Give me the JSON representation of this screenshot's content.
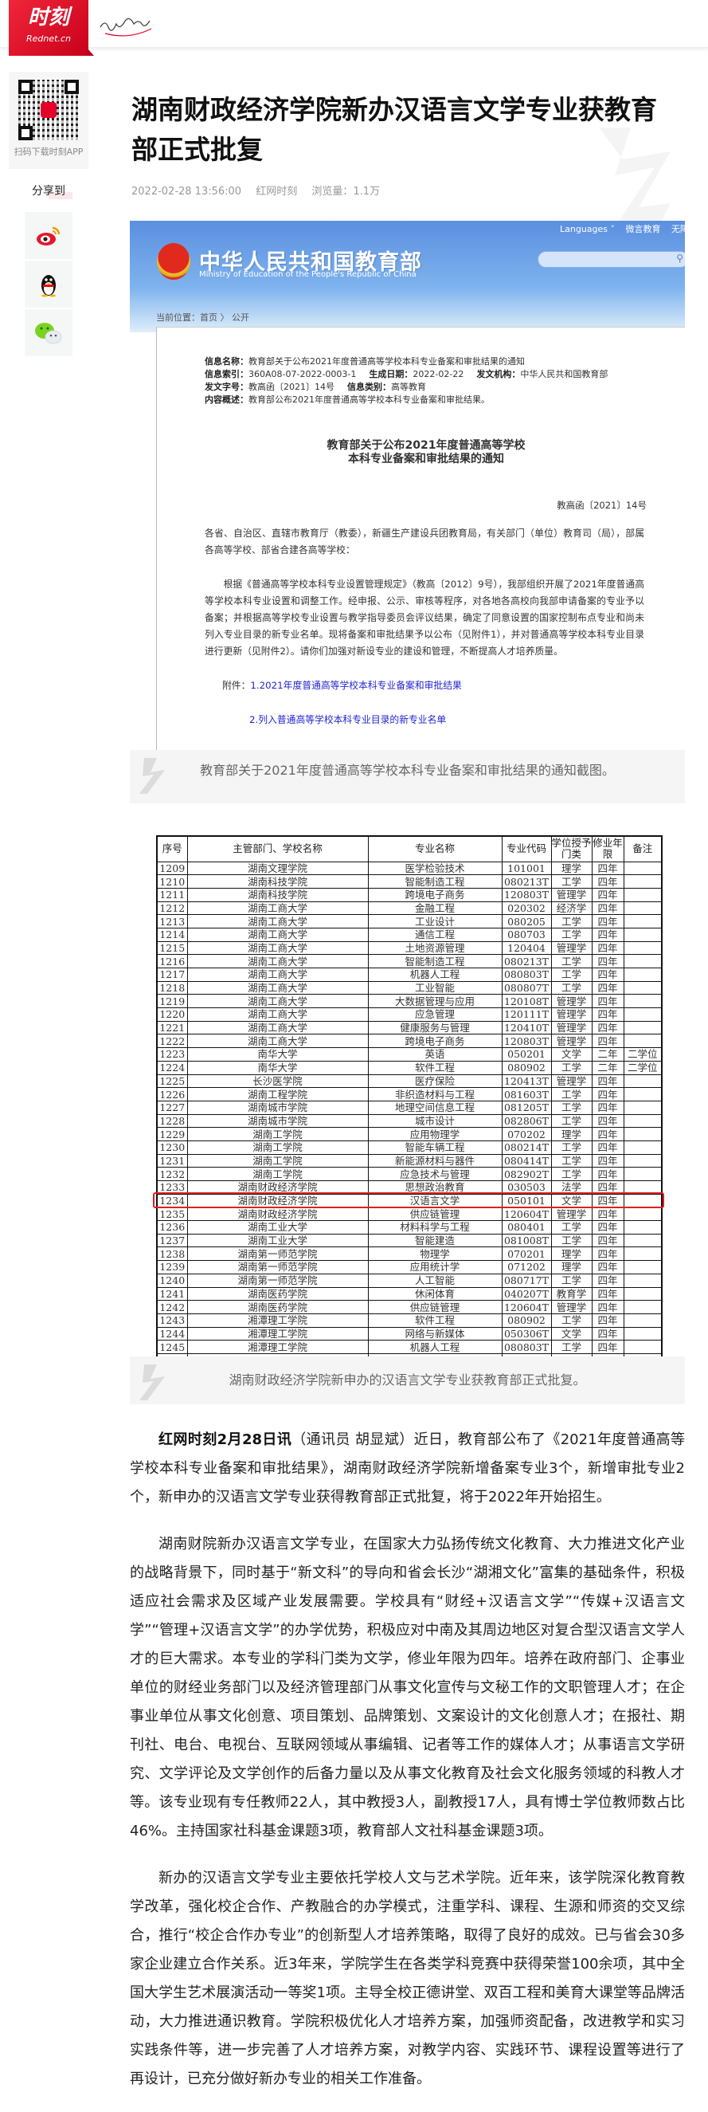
{
  "header": {
    "logo_text": "时刻",
    "logo_sub": "Rednet.cn"
  },
  "sidebar": {
    "qr_caption": "扫码下载时刻APP",
    "share_label": "分享到",
    "share_items": [
      {
        "icon": "weibo-icon"
      },
      {
        "icon": "qq-icon"
      },
      {
        "icon": "wechat-icon"
      }
    ]
  },
  "article": {
    "title": "湖南财政经济学院新办汉语言文学专业获教育部正式批复",
    "datetime": "2022-02-28 13:56:00",
    "source": "红网时刻",
    "views": "浏览量：1.1万",
    "caption1": "教育部关于2021年度普通高等学校本科专业备案和审批结果的通知截图。",
    "caption2": "湖南财政经济学院新申办的汉语言文学专业获教育部正式批复。",
    "para1_lead": "红网时刻2月28日讯",
    "para1": "（通讯员 胡显斌）近日，教育部公布了《2021年度普通高等学校本科专业备案和审批结果》，湖南财政经济学院新增备案专业3个，新增审批专业2个，新申办的汉语言文学专业获得教育部正式批复，将于2022年开始招生。",
    "para2": "湖南财院新办汉语言文学专业，在国家大力弘扬传统文化教育、大力推进文化产业的战略背景下，同时基于“新文科”的导向和省会长沙“湖湘文化”富集的基础条件，积极适应社会需求及区域产业发展需要。学校具有“财经+汉语言文学”“传媒+汉语言文学”“管理+汉语言文学”的办学优势，积极应对中南及其周边地区对复合型汉语言文学人才的巨大需求。本专业的学科门类为文学，修业年限为四年。培养在政府部门、企事业单位的财经业务部门以及经济管理部门从事文化宣传与文秘工作的文职管理人才；在企事业单位从事文化创意、项目策划、品牌策划、文案设计的文化创意人才；在报社、期刊社、电台、电视台、互联网领域从事编辑、记者等工作的媒体人才；从事语言文学研究、文学评论及文学创作的后备力量以及从事文化教育及社会文化服务领域的科教人才等。该专业现有专任教师22人，其中教授3人，副教授17人，具有博士学位教师数占比46%。主持国家社科基金课题3项，教育部人文社科基金课题3项。",
    "para3": "新办的汉语言文学专业主要依托学校人文与艺术学院。近年来，该学院深化教育教学改革，强化校企合作、产教融合的办学模式，注重学科、课程、生源和师资的交叉综合，推行“校企合作办专业”的创新型人才培养策略，取得了良好的成效。已与省会30多家企业建立合作关系。近3年来，学院学生在各类学科竞赛中获得荣誉100余项，其中全国大学生艺术展演活动一等奖1项。主导全校正德讲堂、双百工程和美育大课堂等品牌活动，大力推进通识教育。学院积极优化人才培养方案，加强师资配备，改进教学和实习实践条件等，进一步完善了人才培养方案，对教学内容、实践环节、课程设置等进行了再设计，已充分做好新办专业的相关工作准备。"
  },
  "moe": {
    "site_title": "中华人民共和国教育部",
    "site_title_en": "Ministry of Education of the People's Republic of China",
    "top_links": [
      "Languages ˅",
      "微言教育",
      "无障碍浏览"
    ],
    "breadcrumb": "当前位置：首页 〉 公开",
    "info": {
      "name_label": "信息名称：",
      "name": "教育部关于公布2021年度普通高等学校本科专业备案和审批结果的通知",
      "index_label": "信息索引：",
      "index": "360A08-07-2022-0003-1",
      "date_label": "生成日期：",
      "date": "2022-02-22",
      "org_label": "发文机构：",
      "org": "中华人民共和国教育部",
      "docno_label": "发文字号：",
      "docno": "教高函〔2021〕14号",
      "category_label": "信息类别：",
      "category": "高等教育",
      "summary_label": "内容概述：",
      "summary": "教育部公布2021年度普通高等学校本科专业备案和审批结果。"
    },
    "notice_title_1": "教育部关于公布2021年度普通高等学校",
    "notice_title_2": "本科专业备案和审批结果的通知",
    "doc_number": "教高函〔2021〕14号",
    "salutation": "各省、自治区、直辖市教育厅（教委），新疆生产建设兵团教育局，有关部门（单位）教育司（局），部属各高等学校、部省合建各高等学校：",
    "body": "根据《普通高等学校本科专业设置管理规定》（教高〔2012〕9号），我部组织开展了2021年度普通高等学校本科专业设置和调整工作。经申报、公示、审核等程序，对各地各高校向我部申请备案的专业予以备案；并根据高等学校专业设置与教学指导委员会评议结果，确定了同意设置的国家控制布点专业和尚未列入专业目录的新专业名单。现将备案和审批结果予以公布（见附件1），并对普通高等学校本科专业目录进行更新（见附件2）。请你们加强对新设专业的建设和管理，不断提高人才培养质量。",
    "attach_label": "附件：",
    "attach1": "1.2021年度普通高等学校本科专业备案和审批结果",
    "attach2": "2.列入普通高等学校本科专业目录的新专业名单"
  },
  "table": {
    "headers": [
      "序号",
      "主管部门、学校名称",
      "专业名称",
      "专业代码",
      "学位授予门类",
      "修业年限",
      "备注"
    ],
    "highlight_row": "1234",
    "highlight_color": "#e0201c",
    "rows": [
      [
        "1209",
        "湖南文理学院",
        "医学检验技术",
        "101001",
        "理学",
        "四年",
        ""
      ],
      [
        "1210",
        "湖南科技学院",
        "智能制造工程",
        "080213T",
        "工学",
        "四年",
        ""
      ],
      [
        "1211",
        "湖南科技学院",
        "跨境电子商务",
        "120803T",
        "管理学",
        "四年",
        ""
      ],
      [
        "1212",
        "湖南工商大学",
        "金融工程",
        "020302",
        "经济学",
        "四年",
        ""
      ],
      [
        "1213",
        "湖南工商大学",
        "工业设计",
        "080205",
        "工学",
        "四年",
        ""
      ],
      [
        "1214",
        "湖南工商大学",
        "通信工程",
        "080703",
        "工学",
        "四年",
        ""
      ],
      [
        "1215",
        "湖南工商大学",
        "土地资源管理",
        "120404",
        "管理学",
        "四年",
        ""
      ],
      [
        "1216",
        "湖南工商大学",
        "智能制造工程",
        "080213T",
        "工学",
        "四年",
        ""
      ],
      [
        "1217",
        "湖南工商大学",
        "机器人工程",
        "080803T",
        "工学",
        "四年",
        ""
      ],
      [
        "1218",
        "湖南工商大学",
        "工业智能",
        "080807T",
        "工学",
        "四年",
        ""
      ],
      [
        "1219",
        "湖南工商大学",
        "大数据管理与应用",
        "120108T",
        "管理学",
        "四年",
        ""
      ],
      [
        "1220",
        "湖南工商大学",
        "应急管理",
        "120111T",
        "管理学",
        "四年",
        ""
      ],
      [
        "1221",
        "湖南工商大学",
        "健康服务与管理",
        "120410T",
        "管理学",
        "四年",
        ""
      ],
      [
        "1222",
        "湖南工商大学",
        "跨境电子商务",
        "120803T",
        "管理学",
        "四年",
        ""
      ],
      [
        "1223",
        "南华大学",
        "英语",
        "050201",
        "文学",
        "二年",
        "二学位"
      ],
      [
        "1224",
        "南华大学",
        "软件工程",
        "080902",
        "工学",
        "二年",
        "二学位"
      ],
      [
        "1225",
        "长沙医学院",
        "医疗保险",
        "120413T",
        "管理学",
        "四年",
        ""
      ],
      [
        "1226",
        "湖南工程学院",
        "非织造材料与工程",
        "081603T",
        "工学",
        "四年",
        ""
      ],
      [
        "1227",
        "湖南城市学院",
        "地理空间信息工程",
        "081205T",
        "工学",
        "四年",
        ""
      ],
      [
        "1228",
        "湖南城市学院",
        "城市设计",
        "082806T",
        "工学",
        "四年",
        ""
      ],
      [
        "1229",
        "湖南工学院",
        "应用物理学",
        "070202",
        "理学",
        "四年",
        ""
      ],
      [
        "1230",
        "湖南工学院",
        "智能车辆工程",
        "080214T",
        "工学",
        "四年",
        ""
      ],
      [
        "1231",
        "湖南工学院",
        "新能源材料与器件",
        "080414T",
        "工学",
        "四年",
        ""
      ],
      [
        "1232",
        "湖南工学院",
        "应急技术与管理",
        "082902T",
        "工学",
        "四年",
        ""
      ],
      [
        "1233",
        "湖南财政经济学院",
        "思想政治教育",
        "030503",
        "法学",
        "四年",
        ""
      ],
      [
        "1234",
        "湖南财政经济学院",
        "汉语言文学",
        "050101",
        "文学",
        "四年",
        ""
      ],
      [
        "1235",
        "湖南财政经济学院",
        "供应链管理",
        "120604T",
        "管理学",
        "四年",
        ""
      ],
      [
        "1236",
        "湖南工业大学",
        "材料科学与工程",
        "080401",
        "工学",
        "四年",
        ""
      ],
      [
        "1237",
        "湖南工业大学",
        "智能建造",
        "081008T",
        "工学",
        "四年",
        ""
      ],
      [
        "1238",
        "湖南第一师范学院",
        "物理学",
        "070201",
        "理学",
        "四年",
        ""
      ],
      [
        "1239",
        "湖南第一师范学院",
        "应用统计学",
        "071202",
        "理学",
        "四年",
        ""
      ],
      [
        "1240",
        "湖南第一师范学院",
        "人工智能",
        "080717T",
        "工学",
        "四年",
        ""
      ],
      [
        "1241",
        "湖南医药学院",
        "休闲体育",
        "040207T",
        "教育学",
        "四年",
        ""
      ],
      [
        "1242",
        "湖南医药学院",
        "供应链管理",
        "120604T",
        "管理学",
        "四年",
        ""
      ],
      [
        "1243",
        "湘潭理工学院",
        "软件工程",
        "080902",
        "工学",
        "四年",
        ""
      ],
      [
        "1244",
        "湘潭理工学院",
        "网络与新媒体",
        "050306T",
        "文学",
        "四年",
        ""
      ],
      [
        "1245",
        "湘潭理工学院",
        "机器人工程",
        "080803T",
        "工学",
        "四年",
        ""
      ]
    ]
  },
  "colors": {
    "brand_red": "#e4002b",
    "link_blue": "#2525d0",
    "caption_bg": "#f5f5f5"
  }
}
